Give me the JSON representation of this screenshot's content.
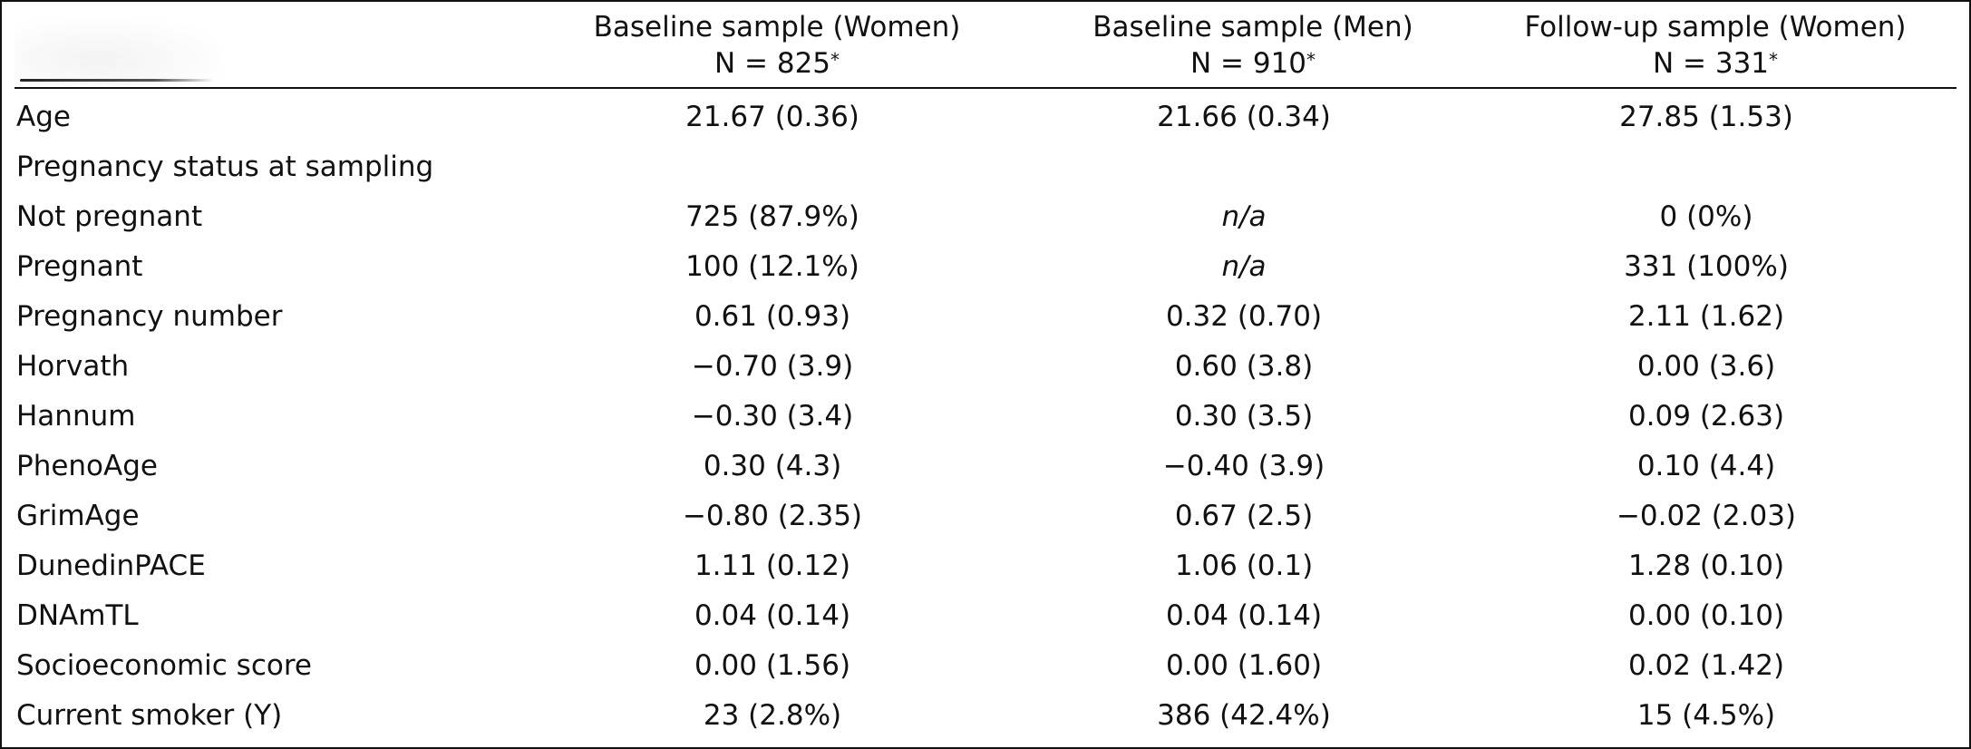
{
  "columns": [
    {
      "title": "Baseline sample (Women)",
      "n": "N = 825",
      "mark": "*"
    },
    {
      "title": "Baseline sample (Men)",
      "n": "N = 910",
      "mark": "*"
    },
    {
      "title": "Follow-up sample (Women)",
      "n": "N = 331",
      "mark": "*"
    }
  ],
  "rows": [
    {
      "label": "Age",
      "values": [
        "21.67 (0.36)",
        "21.66 (0.34)",
        "27.85 (1.53)"
      ]
    },
    {
      "label": "Pregnancy status at sampling",
      "values": [
        "",
        "",
        ""
      ]
    },
    {
      "label": "Not pregnant",
      "values": [
        "725 (87.9%)",
        "n/a",
        "0 (0%)"
      ]
    },
    {
      "label": "Pregnant",
      "values": [
        "100 (12.1%)",
        "n/a",
        "331 (100%)"
      ]
    },
    {
      "label": "Pregnancy number",
      "values": [
        "0.61 (0.93)",
        "0.32 (0.70)",
        "2.11 (1.62)"
      ]
    },
    {
      "label": "Horvath",
      "values": [
        "−0.70 (3.9)",
        "0.60 (3.8)",
        "0.00 (3.6)"
      ]
    },
    {
      "label": "Hannum",
      "values": [
        "−0.30 (3.4)",
        "0.30 (3.5)",
        "0.09 (2.63)"
      ]
    },
    {
      "label": "PhenoAge",
      "values": [
        "0.30 (4.3)",
        "−0.40 (3.9)",
        "0.10 (4.4)"
      ]
    },
    {
      "label": "GrimAge",
      "values": [
        "−0.80 (2.35)",
        "0.67 (2.5)",
        "−0.02 (2.03)"
      ]
    },
    {
      "label": "DunedinPACE",
      "values": [
        "1.11 (0.12)",
        "1.06 (0.1)",
        "1.28 (0.10)"
      ]
    },
    {
      "label": "DNAmTL",
      "values": [
        "0.04 (0.14)",
        "0.04 (0.14)",
        "0.00 (0.10)"
      ]
    },
    {
      "label": "Socioeconomic score",
      "values": [
        "0.00 (1.56)",
        "0.00 (1.60)",
        "0.02 (1.42)"
      ]
    },
    {
      "label": "Current smoker (Y)",
      "values": [
        "23 (2.8%)",
        "386 (42.4%)",
        "15 (4.5%)"
      ]
    }
  ]
}
